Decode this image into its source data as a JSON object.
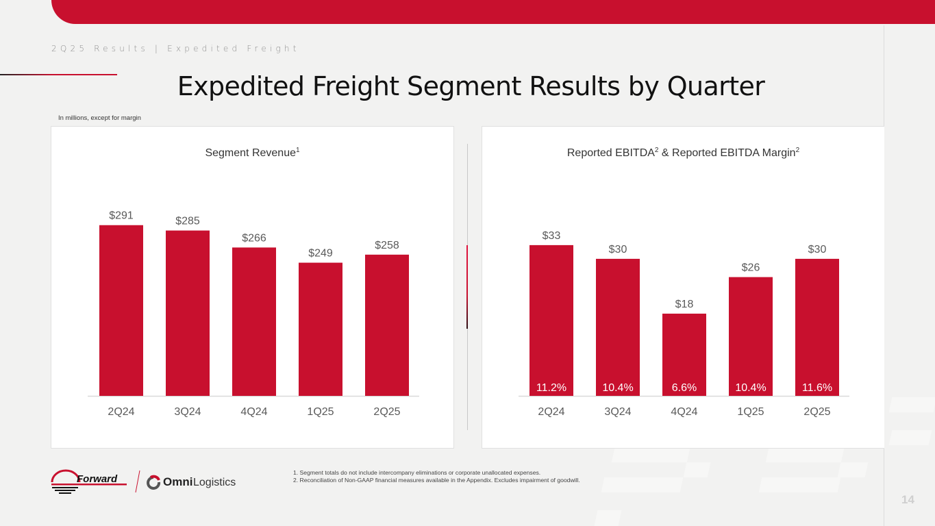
{
  "header": {
    "subtitle": "2Q25 Results | Expedited Freight",
    "title": "Expedited Freight Segment Results by Quarter",
    "units_note": "In millions, except for margin"
  },
  "colors": {
    "brand_red": "#c8102e",
    "text_gray": "#595959"
  },
  "chart_data": [
    {
      "type": "bar",
      "title": "Segment Revenue",
      "title_superscript": "1",
      "categories": [
        "2Q24",
        "3Q24",
        "4Q24",
        "1Q25",
        "2Q25"
      ],
      "values": [
        291,
        285,
        266,
        249,
        258
      ],
      "data_labels": [
        "$291",
        "$285",
        "$266",
        "$249",
        "$258"
      ],
      "xlabel": "",
      "ylabel": "",
      "ylim": [
        100,
        300
      ],
      "grid": false,
      "legend": "none",
      "color": "#c8102e"
    },
    {
      "type": "bar",
      "title": "Reported EBITDA",
      "title_superscript": "2",
      "title_suffix": " & Reported EBITDA Margin",
      "title_suffix_superscript": "2",
      "categories": [
        "2Q24",
        "3Q24",
        "4Q24",
        "1Q25",
        "2Q25"
      ],
      "values": [
        33,
        30,
        18,
        26,
        30
      ],
      "data_labels": [
        "$33",
        "$30",
        "$18",
        "$26",
        "$30"
      ],
      "margins": [
        "11.2%",
        "10.4%",
        "6.6%",
        "10.4%",
        "11.6%"
      ],
      "xlabel": "",
      "ylabel": "",
      "ylim": [
        0,
        35
      ],
      "grid": false,
      "legend": "none",
      "color": "#c8102e"
    }
  ],
  "footnotes": [
    "1.  Segment totals do not include intercompany eliminations or corporate unallocated expenses.",
    "2.  Reconciliation of Non-GAAP financial measures available in the Appendix. Excludes impairment of goodwill."
  ],
  "logos": {
    "forward": "Forward",
    "omni_bold": "Omni",
    "omni_light": "Logistics"
  },
  "page_number": "14"
}
